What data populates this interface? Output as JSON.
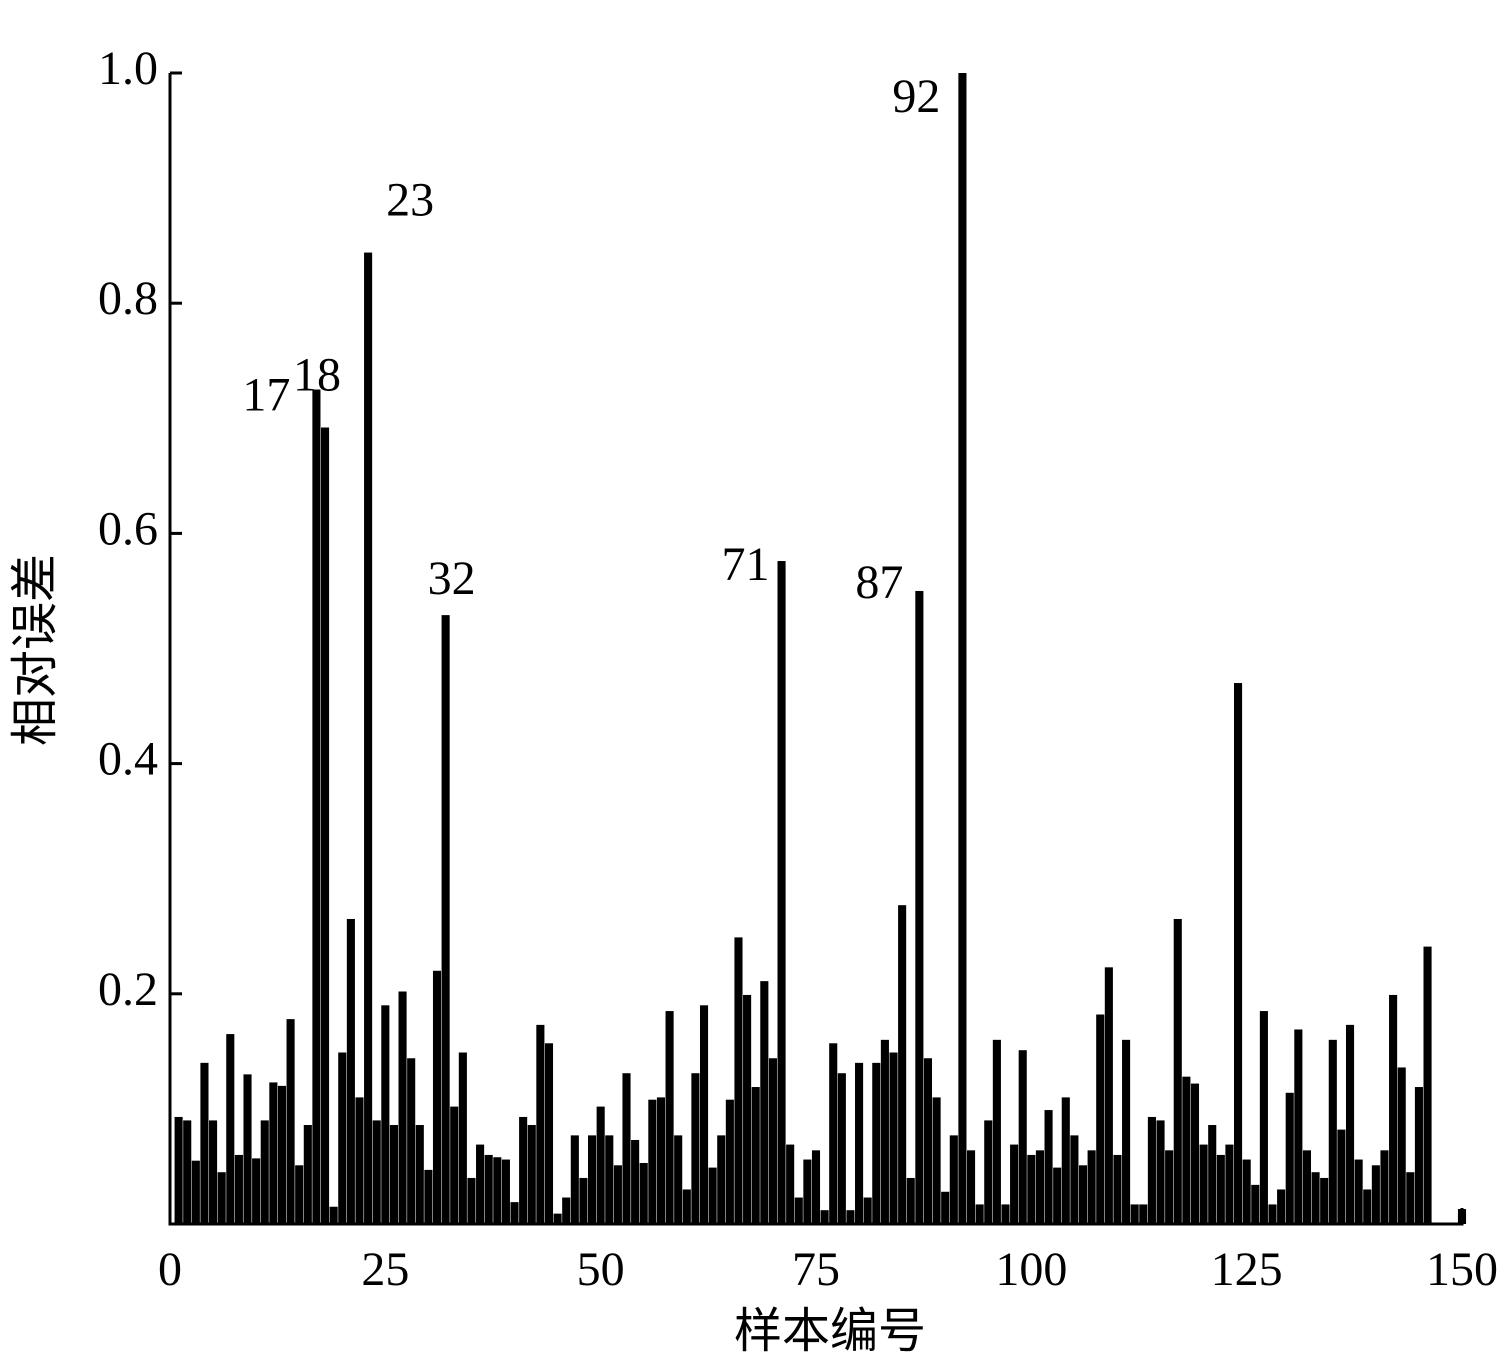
{
  "chart_data": {
    "type": "bar",
    "x_label": "样本编号",
    "y_label": "相对误差",
    "x": [
      1,
      2,
      3,
      4,
      5,
      6,
      7,
      8,
      9,
      10,
      11,
      12,
      13,
      14,
      15,
      16,
      17,
      18,
      19,
      20,
      21,
      22,
      23,
      24,
      25,
      26,
      27,
      28,
      29,
      30,
      31,
      32,
      33,
      34,
      35,
      36,
      37,
      38,
      39,
      40,
      41,
      42,
      43,
      44,
      45,
      46,
      47,
      48,
      49,
      50,
      51,
      52,
      53,
      54,
      55,
      56,
      57,
      58,
      59,
      60,
      61,
      62,
      63,
      64,
      65,
      66,
      67,
      68,
      69,
      70,
      71,
      72,
      73,
      74,
      75,
      76,
      77,
      78,
      79,
      80,
      81,
      82,
      83,
      84,
      85,
      86,
      87,
      88,
      89,
      90,
      91,
      92,
      93,
      94,
      95,
      96,
      97,
      98,
      99,
      100,
      101,
      102,
      103,
      104,
      105,
      106,
      107,
      108,
      109,
      110,
      111,
      112,
      113,
      114,
      115,
      116,
      117,
      118,
      119,
      120,
      121,
      122,
      123,
      124,
      125,
      126,
      127,
      128,
      129,
      130,
      131,
      132,
      133,
      134,
      135,
      136,
      137,
      138,
      139,
      140,
      141,
      142,
      143,
      144,
      145,
      146,
      147,
      148,
      149,
      150
    ],
    "values": [
      0.093,
      0.09,
      0.055,
      0.14,
      0.09,
      0.045,
      0.165,
      0.06,
      0.13,
      0.057,
      0.09,
      0.123,
      0.12,
      0.178,
      0.051,
      0.086,
      0.725,
      0.692,
      0.015,
      0.149,
      0.265,
      0.11,
      0.844,
      0.09,
      0.19,
      0.086,
      0.202,
      0.144,
      0.086,
      0.047,
      0.22,
      0.529,
      0.102,
      0.149,
      0.04,
      0.069,
      0.06,
      0.058,
      0.056,
      0.019,
      0.093,
      0.086,
      0.173,
      0.157,
      0.009,
      0.023,
      0.077,
      0.04,
      0.077,
      0.102,
      0.077,
      0.051,
      0.131,
      0.073,
      0.053,
      0.108,
      0.11,
      0.185,
      0.077,
      0.03,
      0.131,
      0.19,
      0.049,
      0.077,
      0.108,
      0.249,
      0.199,
      0.119,
      0.211,
      0.144,
      0.576,
      0.069,
      0.023,
      0.056,
      0.064,
      0.012,
      0.157,
      0.131,
      0.012,
      0.14,
      0.023,
      0.14,
      0.16,
      0.149,
      0.277,
      0.04,
      0.55,
      0.144,
      0.11,
      0.028,
      0.077,
      1.0,
      0.064,
      0.017,
      0.09,
      0.16,
      0.017,
      0.069,
      0.151,
      0.06,
      0.064,
      0.099,
      0.049,
      0.11,
      0.077,
      0.051,
      0.064,
      0.182,
      0.223,
      0.06,
      0.16,
      0.017,
      0.017,
      0.093,
      0.09,
      0.064,
      0.265,
      0.128,
      0.122,
      0.069,
      0.086,
      0.06,
      0.069,
      0.47,
      0.056,
      0.034,
      0.185,
      0.017,
      0.03,
      0.114,
      0.169,
      0.064,
      0.045,
      0.04,
      0.16,
      0.082,
      0.173,
      0.056,
      0.03,
      0.051,
      0.064,
      0.199,
      0.136,
      0.045,
      0.119,
      0.241,
      0,
      0,
      0,
      0.013
    ],
    "color": "#000000",
    "annotations": [
      17,
      18,
      23,
      32,
      71,
      87,
      92
    ],
    "xlim": [
      0,
      150
    ],
    "xticks": [
      0,
      25,
      50,
      75,
      100,
      125,
      150
    ],
    "ylim": [
      0,
      1
    ],
    "yticks": [
      0.2,
      0.4,
      0.6,
      0.8,
      {
        "value": 1,
        "label": "1.0"
      }
    ],
    "grid": false
  }
}
